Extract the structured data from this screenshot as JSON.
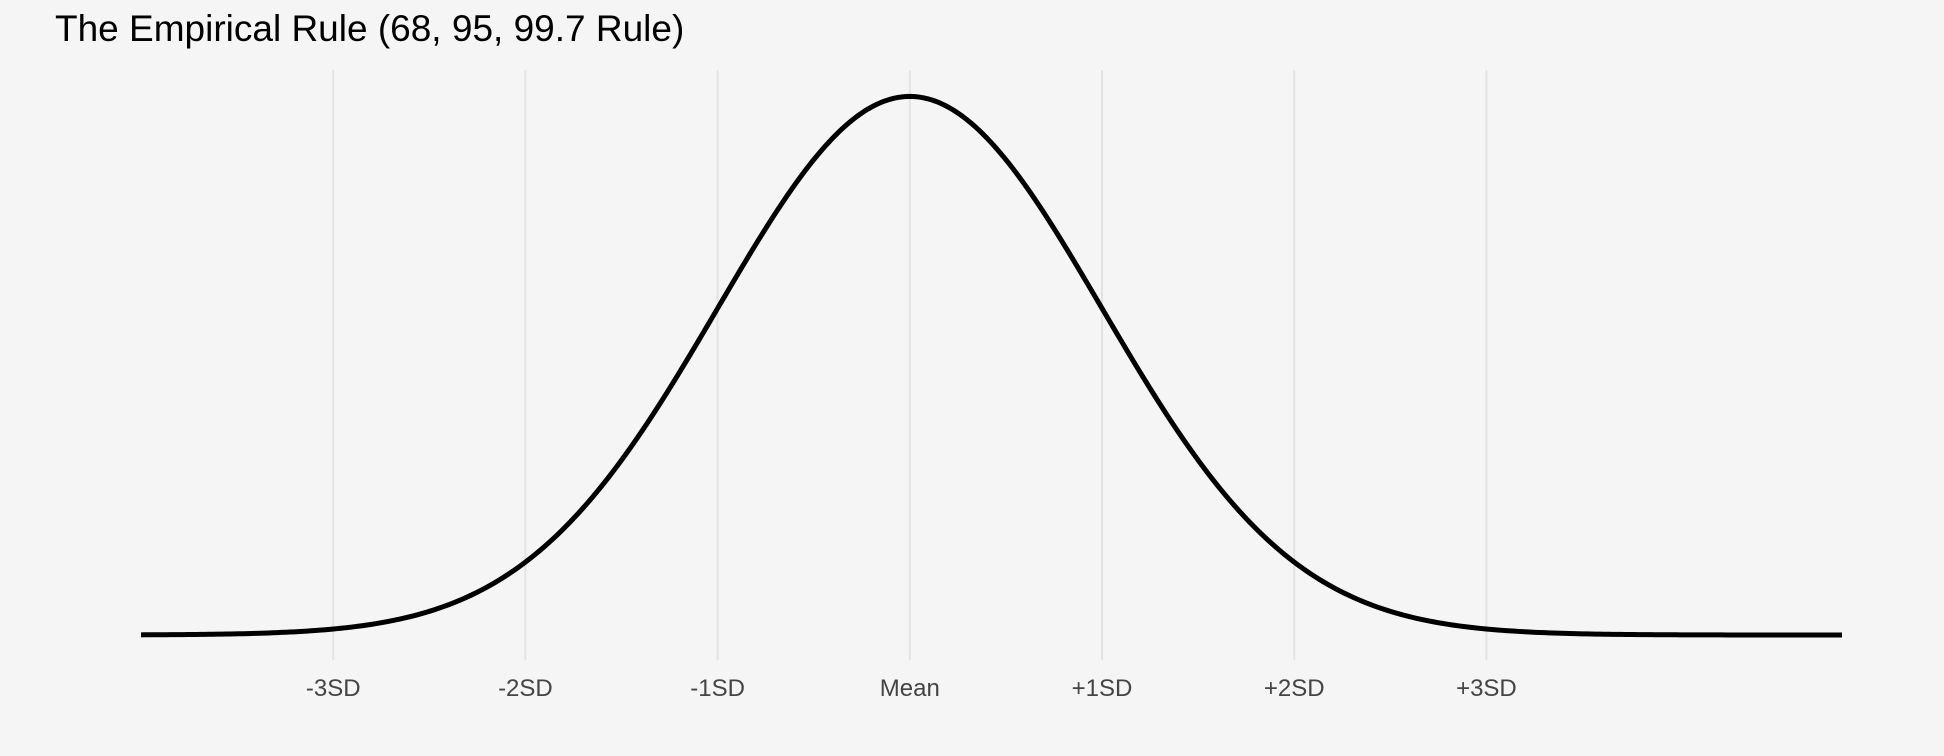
{
  "chart_data": {
    "type": "line",
    "title": "The Empirical Rule (68, 95, 99.7 Rule)",
    "xlabel": "",
    "ylabel": "",
    "x_ticks": [
      {
        "value": -3,
        "label": "-3SD"
      },
      {
        "value": -2,
        "label": "-2SD"
      },
      {
        "value": -1,
        "label": "-1SD"
      },
      {
        "value": 0,
        "label": "Mean"
      },
      {
        "value": 1,
        "label": "+1SD"
      },
      {
        "value": 2,
        "label": "+2SD"
      },
      {
        "value": 3,
        "label": "+3SD"
      }
    ],
    "xlim": [
      -4,
      4.85
    ],
    "ylim": [
      0,
      0.4
    ],
    "grid": "vertical lines at SD ticks",
    "legend": "none",
    "series": [
      {
        "distribution": "standard normal density",
        "color": "#000000",
        "x": [
          -4,
          -3.5,
          -3,
          -2.5,
          -2,
          -1.75,
          -1.5,
          -1.25,
          -1,
          -0.75,
          -0.5,
          -0.25,
          0,
          0.25,
          0.5,
          0.75,
          1,
          1.25,
          1.5,
          1.75,
          2,
          2.5,
          3,
          3.5,
          4,
          4.5,
          4.85
        ],
        "y": [
          0.0001,
          0.0009,
          0.0044,
          0.0175,
          0.054,
          0.0863,
          0.1295,
          0.1826,
          0.242,
          0.3011,
          0.3521,
          0.3867,
          0.3989,
          0.3867,
          0.3521,
          0.3011,
          0.242,
          0.1826,
          0.1295,
          0.0863,
          0.054,
          0.0175,
          0.0044,
          0.0009,
          0.0001,
          0.0,
          0.0
        ]
      }
    ]
  },
  "colors": {
    "background": "#f5f5f5",
    "grid": "#e3e3e3",
    "curve": "#000000",
    "tick_text": "#444444",
    "title_text": "#000000"
  }
}
